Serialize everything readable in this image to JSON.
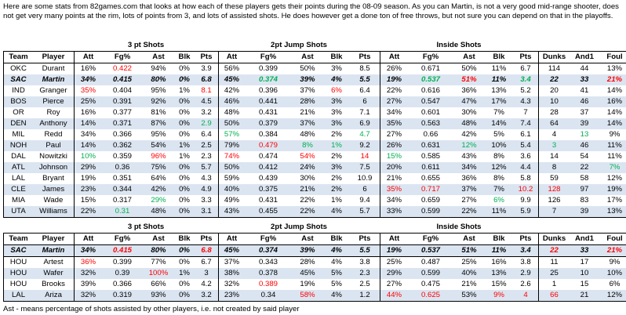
{
  "intro": "Here are some stats from 82games.com that looks at how each of these players gets their points during the 08-09 season. As you can Martin, is not a very good mid-range shooter, does not get very many points at the rim, lots of points from 3, and lots of assisted shots. He does however get a done ton of free throws, but not sure you can depend on that in the playoffs.",
  "groups": {
    "three": "3 pt Shots",
    "two": "2pt Jump Shots",
    "inside": "Inside Shots"
  },
  "columns": [
    "Team",
    "Player",
    "Att",
    "Fg%",
    "Ast",
    "Blk",
    "Pts",
    "Att",
    "Fg%",
    "Ast",
    "Blk",
    "Pts",
    "Att",
    "Fg%",
    "Ast",
    "Blk",
    "Pts",
    "Dunks",
    "And1",
    "Foul"
  ],
  "colors": {
    "band": "#dbe5f1",
    "red": "#ff0000",
    "green": "#00b050"
  },
  "table1": {
    "rows": [
      {
        "band": false,
        "highlight": false,
        "cells": [
          "OKC",
          "Durant",
          "16%",
          "0.422",
          "94%",
          "0%",
          "3.9",
          "56%",
          "0.399",
          "50%",
          "3%",
          "8.5",
          "26%",
          "0.671",
          "50%",
          "11%",
          "6.7",
          "114",
          "44",
          "13%"
        ],
        "red": [
          3
        ],
        "green": []
      },
      {
        "band": true,
        "highlight": true,
        "cells": [
          "SAC",
          "Martin",
          "34%",
          "0.415",
          "80%",
          "0%",
          "6.8",
          "45%",
          "0.374",
          "39%",
          "4%",
          "5.5",
          "19%",
          "0.537",
          "51%",
          "11%",
          "3.4",
          "22",
          "33",
          "21%"
        ],
        "red": [
          14,
          19
        ],
        "green": [
          8,
          13,
          16
        ]
      },
      {
        "band": false,
        "highlight": false,
        "cells": [
          "IND",
          "Granger",
          "35%",
          "0.404",
          "95%",
          "1%",
          "8.1",
          "42%",
          "0.396",
          "37%",
          "6%",
          "6.4",
          "22%",
          "0.616",
          "36%",
          "13%",
          "5.2",
          "20",
          "41",
          "14%"
        ],
        "red": [
          2,
          6,
          10
        ],
        "green": []
      },
      {
        "band": true,
        "highlight": false,
        "cells": [
          "BOS",
          "Pierce",
          "25%",
          "0.391",
          "92%",
          "0%",
          "4.5",
          "46%",
          "0.441",
          "28%",
          "3%",
          "6",
          "27%",
          "0.547",
          "47%",
          "17%",
          "4.3",
          "10",
          "46",
          "16%"
        ],
        "red": [],
        "green": []
      },
      {
        "band": false,
        "highlight": false,
        "cells": [
          "OR",
          "Roy",
          "16%",
          "0.377",
          "81%",
          "0%",
          "3.2",
          "48%",
          "0.431",
          "21%",
          "3%",
          "7.1",
          "34%",
          "0.601",
          "30%",
          "7%",
          "7",
          "28",
          "37",
          "14%"
        ],
        "red": [],
        "green": []
      },
      {
        "band": true,
        "highlight": false,
        "cells": [
          "DEN",
          "Anthony",
          "14%",
          "0.371",
          "87%",
          "0%",
          "2.9",
          "50%",
          "0.379",
          "37%",
          "3%",
          "6.9",
          "35%",
          "0.563",
          "48%",
          "14%",
          "7.4",
          "64",
          "39",
          "14%"
        ],
        "red": [],
        "green": [
          6
        ]
      },
      {
        "band": false,
        "highlight": false,
        "cells": [
          "MIL",
          "Redd",
          "34%",
          "0.366",
          "95%",
          "0%",
          "6.4",
          "57%",
          "0.384",
          "48%",
          "2%",
          "4.7",
          "27%",
          "0.66",
          "42%",
          "5%",
          "6.1",
          "4",
          "13",
          "9%"
        ],
        "red": [],
        "green": [
          7,
          11,
          18
        ]
      },
      {
        "band": true,
        "highlight": false,
        "cells": [
          "NOH",
          "Paul",
          "14%",
          "0.362",
          "54%",
          "1%",
          "2.5",
          "79%",
          "0.479",
          "8%",
          "1%",
          "9.2",
          "26%",
          "0.631",
          "12%",
          "10%",
          "5.4",
          "3",
          "46",
          "11%"
        ],
        "red": [
          8
        ],
        "green": [
          9,
          10,
          14,
          17
        ]
      },
      {
        "band": false,
        "highlight": false,
        "cells": [
          "DAL",
          "Nowitzki",
          "10%",
          "0.359",
          "96%",
          "1%",
          "2.3",
          "74%",
          "0.474",
          "54%",
          "2%",
          "14",
          "15%",
          "0.585",
          "43%",
          "8%",
          "3.6",
          "14",
          "54",
          "11%"
        ],
        "red": [
          4,
          7,
          9,
          11
        ],
        "green": [
          2,
          12
        ]
      },
      {
        "band": true,
        "highlight": false,
        "cells": [
          "ATL",
          "Johnson",
          "29%",
          "0.36",
          "75%",
          "0%",
          "5.7",
          "50%",
          "0.412",
          "24%",
          "3%",
          "7.5",
          "20%",
          "0.611",
          "34%",
          "12%",
          "4.4",
          "8",
          "22",
          "7%"
        ],
        "red": [],
        "green": [
          19
        ]
      },
      {
        "band": false,
        "highlight": false,
        "cells": [
          "LAL",
          "Bryant",
          "19%",
          "0.351",
          "64%",
          "0%",
          "4.3",
          "59%",
          "0.439",
          "30%",
          "2%",
          "10.9",
          "21%",
          "0.655",
          "36%",
          "8%",
          "5.8",
          "59",
          "58",
          "12%"
        ],
        "red": [],
        "green": []
      },
      {
        "band": true,
        "highlight": false,
        "cells": [
          "CLE",
          "James",
          "23%",
          "0.344",
          "42%",
          "0%",
          "4.9",
          "40%",
          "0.375",
          "21%",
          "2%",
          "6",
          "35%",
          "0.717",
          "37%",
          "7%",
          "10.2",
          "128",
          "97",
          "19%"
        ],
        "red": [
          12,
          13,
          16,
          17
        ],
        "green": []
      },
      {
        "band": false,
        "highlight": false,
        "cells": [
          "MIA",
          "Wade",
          "15%",
          "0.317",
          "29%",
          "0%",
          "3.3",
          "49%",
          "0.431",
          "22%",
          "1%",
          "9.4",
          "34%",
          "0.659",
          "27%",
          "6%",
          "9.9",
          "126",
          "83",
          "17%"
        ],
        "red": [],
        "green": [
          4,
          15
        ]
      },
      {
        "band": true,
        "highlight": false,
        "cells": [
          "UTA",
          "Williams",
          "22%",
          "0.31",
          "48%",
          "0%",
          "3.1",
          "43%",
          "0.455",
          "22%",
          "4%",
          "5.7",
          "33%",
          "0.599",
          "22%",
          "11%",
          "5.9",
          "7",
          "39",
          "13%"
        ],
        "red": [],
        "green": [
          3
        ]
      }
    ]
  },
  "table2": {
    "rows": [
      {
        "band": true,
        "highlight": true,
        "cells": [
          "SAC",
          "Martin",
          "34%",
          "0.415",
          "80%",
          "0%",
          "6.8",
          "45%",
          "0.374",
          "39%",
          "4%",
          "5.5",
          "19%",
          "0.537",
          "51%",
          "11%",
          "3.4",
          "22",
          "33",
          "21%"
        ],
        "red": [
          3,
          6,
          17,
          19
        ],
        "green": []
      },
      {
        "band": false,
        "highlight": false,
        "cells": [
          "HOU",
          "Artest",
          "36%",
          "0.399",
          "77%",
          "0%",
          "6.7",
          "37%",
          "0.343",
          "28%",
          "4%",
          "3.8",
          "25%",
          "0.487",
          "25%",
          "16%",
          "3.8",
          "11",
          "17",
          "9%"
        ],
        "red": [
          2
        ],
        "green": []
      },
      {
        "band": true,
        "highlight": false,
        "cells": [
          "HOU",
          "Wafer",
          "32%",
          "0.39",
          "100%",
          "1%",
          "3",
          "38%",
          "0.378",
          "45%",
          "5%",
          "2.3",
          "29%",
          "0.599",
          "40%",
          "13%",
          "2.9",
          "25",
          "10",
          "10%"
        ],
        "red": [
          4
        ],
        "green": []
      },
      {
        "band": false,
        "highlight": false,
        "cells": [
          "HOU",
          "Brooks",
          "39%",
          "0.366",
          "66%",
          "0%",
          "4.2",
          "32%",
          "0.389",
          "19%",
          "5%",
          "2.5",
          "27%",
          "0.475",
          "21%",
          "15%",
          "2.6",
          "1",
          "15",
          "6%"
        ],
        "red": [
          8
        ],
        "green": []
      },
      {
        "band": true,
        "highlight": false,
        "cells": [
          "LAL",
          "Ariza",
          "32%",
          "0.319",
          "93%",
          "0%",
          "3.2",
          "23%",
          "0.34",
          "58%",
          "4%",
          "1.2",
          "44%",
          "0.625",
          "53%",
          "9%",
          "4",
          "66",
          "21",
          "12%"
        ],
        "red": [
          9,
          12,
          13,
          15,
          16,
          17
        ],
        "green": []
      }
    ]
  },
  "footnote": "Ast  -  means percentage of shots assisted by other players, i.e. not created by said player"
}
